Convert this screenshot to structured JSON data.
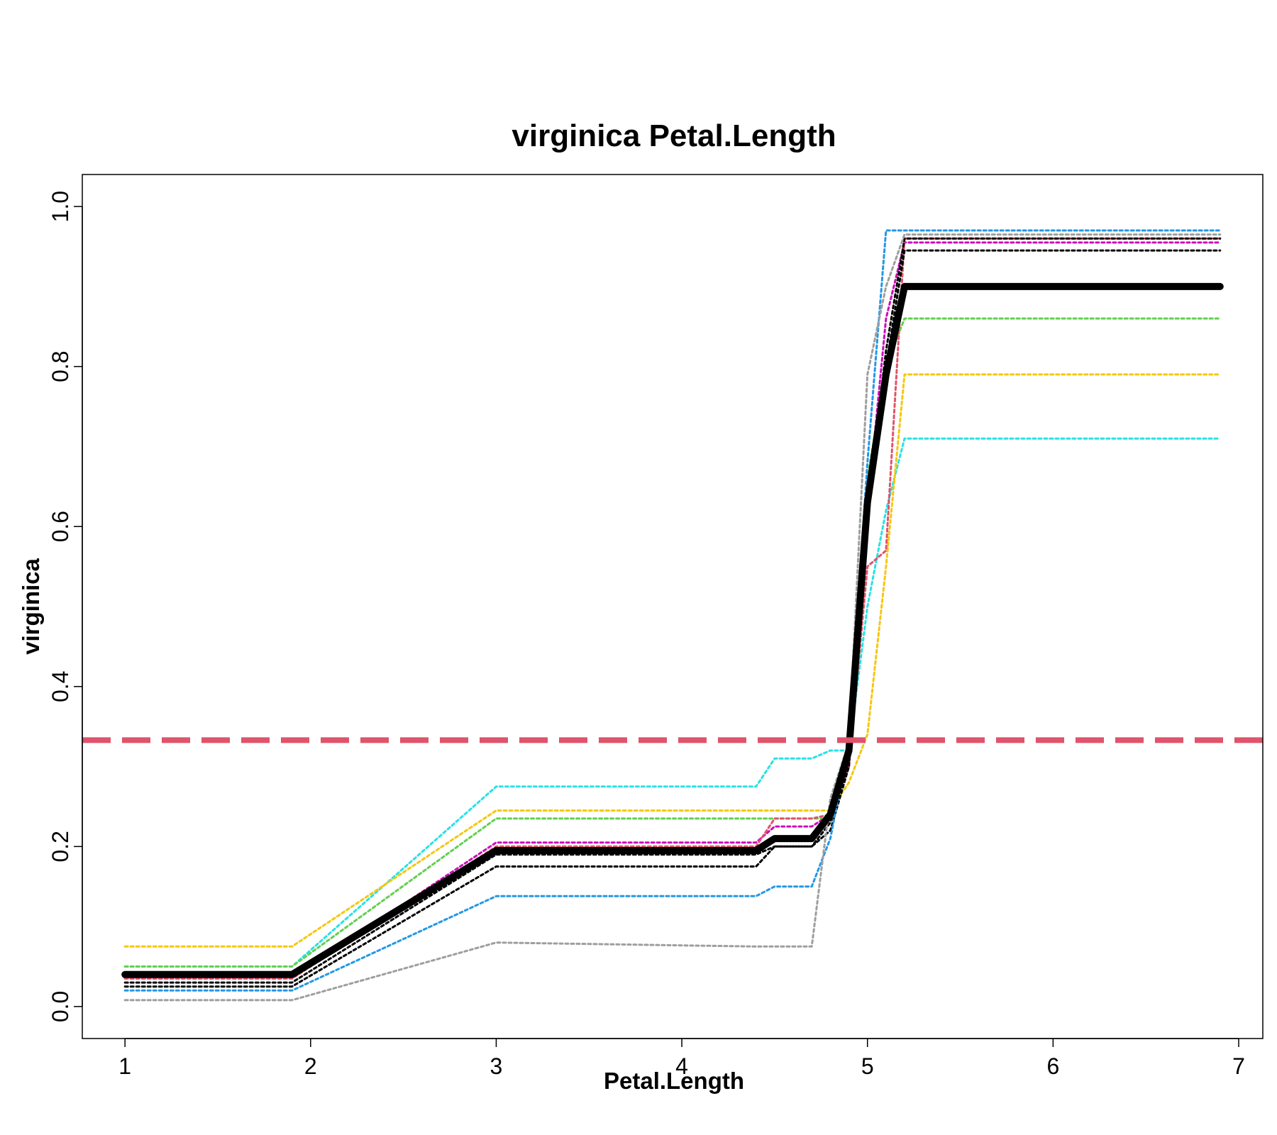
{
  "chart_data": {
    "type": "line",
    "title": "virginica  Petal.Length",
    "xlabel": "Petal.Length",
    "ylabel": "virginica",
    "xlim": [
      0.77,
      7.13
    ],
    "ylim": [
      -0.04,
      1.04
    ],
    "x_ticks": [
      1,
      2,
      3,
      4,
      5,
      6,
      7
    ],
    "x_tick_labels": [
      "1",
      "2",
      "3",
      "4",
      "5",
      "6",
      "7"
    ],
    "y_ticks": [
      0,
      0.2,
      0.4,
      0.6,
      0.8,
      1
    ],
    "y_tick_labels": [
      "0.0",
      "0.2",
      "0.4",
      "0.6",
      "0.8",
      "1.0"
    ],
    "grid": false,
    "reference_line": {
      "y": 0.333,
      "color": "#DF536B",
      "style": "dashed"
    },
    "x": [
      1.0,
      1.9,
      3.0,
      4.4,
      4.5,
      4.7,
      4.8,
      4.9,
      5.0,
      5.1,
      5.2,
      6.9
    ],
    "series": [
      {
        "color": "#000000",
        "style": "solid",
        "values": [
          0.04,
          0.04,
          0.195,
          0.195,
          0.21,
          0.21,
          0.24,
          0.32,
          0.63,
          0.79,
          0.9,
          0.9
        ]
      },
      {
        "color": "#28E2E5",
        "style": "dotted",
        "values": [
          0.05,
          0.05,
          0.275,
          0.275,
          0.31,
          0.31,
          0.32,
          0.32,
          0.5,
          0.62,
          0.71,
          0.71
        ]
      },
      {
        "color": "#F5C710",
        "style": "dotted",
        "values": [
          0.075,
          0.075,
          0.245,
          0.245,
          0.245,
          0.245,
          0.245,
          0.28,
          0.34,
          0.55,
          0.79,
          0.79
        ]
      },
      {
        "color": "#61D04F",
        "style": "dotted",
        "values": [
          0.05,
          0.05,
          0.235,
          0.235,
          0.235,
          0.235,
          0.235,
          0.33,
          0.66,
          0.8,
          0.86,
          0.86
        ]
      },
      {
        "color": "#CD0BBC",
        "style": "dotted",
        "values": [
          0.035,
          0.035,
          0.205,
          0.205,
          0.225,
          0.225,
          0.24,
          0.3,
          0.62,
          0.86,
          0.955,
          0.955
        ]
      },
      {
        "color": "#DF536B",
        "style": "dotted",
        "values": [
          0.035,
          0.035,
          0.2,
          0.2,
          0.235,
          0.235,
          0.24,
          0.3,
          0.55,
          0.57,
          0.96,
          0.96
        ]
      },
      {
        "color": "#000000",
        "style": "dotted",
        "values": [
          0.03,
          0.03,
          0.19,
          0.19,
          0.2,
          0.2,
          0.22,
          0.3,
          0.62,
          0.82,
          0.96,
          0.96
        ]
      },
      {
        "color": "#000000",
        "style": "dotted",
        "values": [
          0.025,
          0.025,
          0.175,
          0.175,
          0.2,
          0.2,
          0.23,
          0.31,
          0.64,
          0.8,
          0.945,
          0.945
        ]
      },
      {
        "color": "#2297E6",
        "style": "dotted",
        "values": [
          0.02,
          0.02,
          0.138,
          0.138,
          0.15,
          0.15,
          0.21,
          0.33,
          0.68,
          0.97,
          0.97,
          0.97
        ]
      },
      {
        "color": "#9E9E9E",
        "style": "dotted",
        "values": [
          0.008,
          0.008,
          0.08,
          0.075,
          0.075,
          0.075,
          0.26,
          0.33,
          0.79,
          0.9,
          0.965,
          0.965
        ]
      }
    ]
  }
}
